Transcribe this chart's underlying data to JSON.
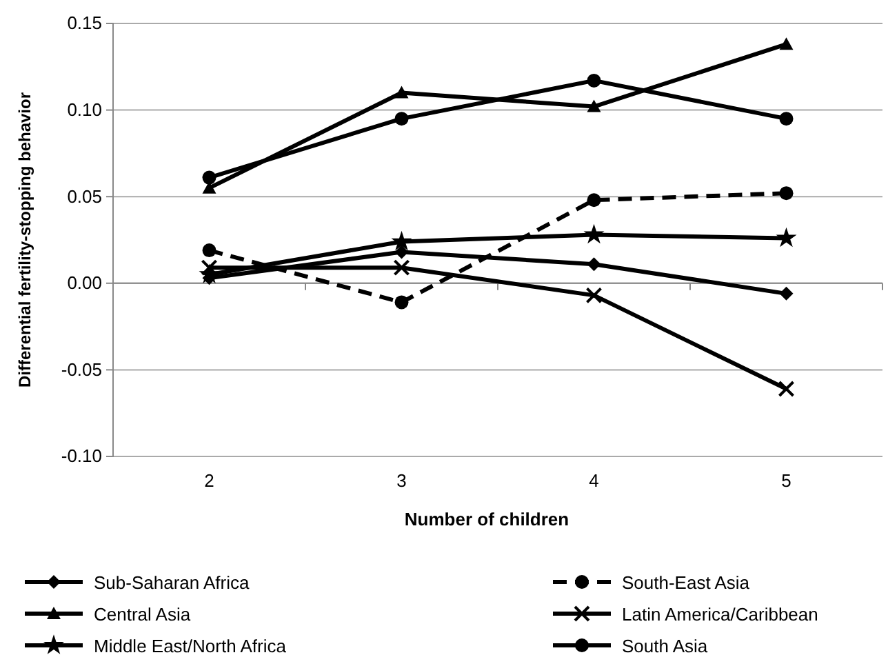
{
  "chart_data": {
    "type": "line",
    "xlabel": "Number of children",
    "ylabel": "Differential fertility-stopping behavior",
    "categories": [
      "2",
      "3",
      "4",
      "5"
    ],
    "series": [
      {
        "name": "Sub-Saharan Africa",
        "color": "#000000",
        "marker": "diamond",
        "line_style": "solid",
        "values": [
          0.003,
          0.018,
          0.011,
          -0.006
        ]
      },
      {
        "name": "South-East Asia",
        "color": "#000000",
        "marker": "circle",
        "line_style": "dashed",
        "values": [
          0.019,
          -0.011,
          0.048,
          0.052
        ]
      },
      {
        "name": "Central Asia",
        "color": "#000000",
        "marker": "triangle",
        "line_style": "solid",
        "values": [
          0.055,
          0.11,
          0.102,
          0.138
        ]
      },
      {
        "name": "Latin America/Caribbean",
        "color": "#000000",
        "marker": "cross",
        "line_style": "solid",
        "values": [
          0.009,
          0.009,
          -0.007,
          -0.061
        ]
      },
      {
        "name": "Middle East/North  Africa",
        "color": "#000000",
        "marker": "star",
        "line_style": "solid",
        "values": [
          0.005,
          0.024,
          0.028,
          0.026
        ]
      },
      {
        "name": "South Asia",
        "color": "#000000",
        "marker": "circle",
        "line_style": "solid",
        "values": [
          0.061,
          0.095,
          0.117,
          0.095
        ]
      }
    ],
    "ylim": [
      -0.1,
      0.15
    ],
    "yticks": [
      {
        "value": -0.1,
        "label": "-0.10"
      },
      {
        "value": -0.05,
        "label": "-0.05"
      },
      {
        "value": 0,
        "label": "0.00"
      },
      {
        "value": 0.05,
        "label": "0.05"
      },
      {
        "value": 0.1,
        "label": "0.10"
      },
      {
        "value": 0.15,
        "label": "0.15"
      }
    ],
    "grid": "y",
    "legend": "bottom"
  }
}
